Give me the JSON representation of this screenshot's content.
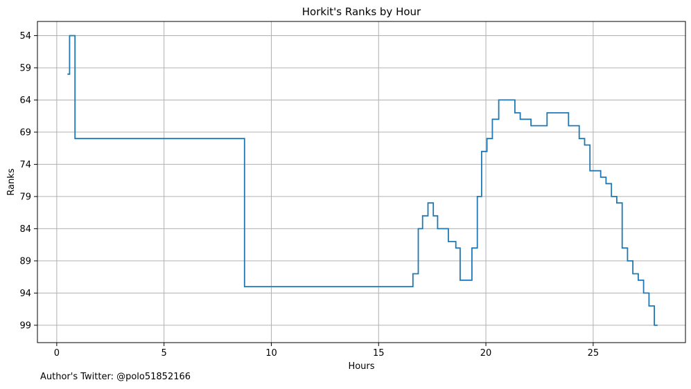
{
  "chart_data": {
    "type": "line",
    "step": true,
    "title": "Horkit's Ranks by Hour",
    "xlabel": "Hours",
    "ylabel": "Ranks",
    "xlim": [
      -0.9,
      29.3
    ],
    "ylim": [
      101.7,
      51.8
    ],
    "y_inverted": true,
    "xticks": [
      0,
      5,
      10,
      15,
      20,
      25
    ],
    "yticks": [
      54,
      59,
      64,
      69,
      74,
      79,
      84,
      89,
      94,
      99
    ],
    "grid": true,
    "line_color": "#1f77b4",
    "series": [
      {
        "x": [
          0.5,
          0.6,
          0.85,
          8.75,
          16.6,
          16.85,
          17.05,
          17.3,
          17.55,
          17.75,
          18.25,
          18.6,
          18.8,
          19.35,
          19.6,
          19.8,
          20.05,
          20.3,
          20.6,
          21.35,
          21.6,
          22.1,
          22.85,
          23.85,
          24.35,
          24.6,
          24.85,
          25.35,
          25.6,
          25.85,
          26.1,
          26.35,
          26.6,
          26.85,
          27.1,
          27.35,
          27.6,
          27.85,
          28.0
        ],
        "y": [
          60,
          54,
          70,
          93,
          91,
          84,
          82,
          80,
          82,
          84,
          86,
          87,
          92,
          87,
          79,
          72,
          70,
          67,
          64,
          66,
          67,
          68,
          66,
          68,
          70,
          71,
          75,
          76,
          77,
          79,
          80,
          87,
          89,
          91,
          92,
          94,
          96,
          99,
          99
        ]
      }
    ]
  },
  "footer": {
    "author_note": "Author's Twitter: @polo51852166"
  }
}
